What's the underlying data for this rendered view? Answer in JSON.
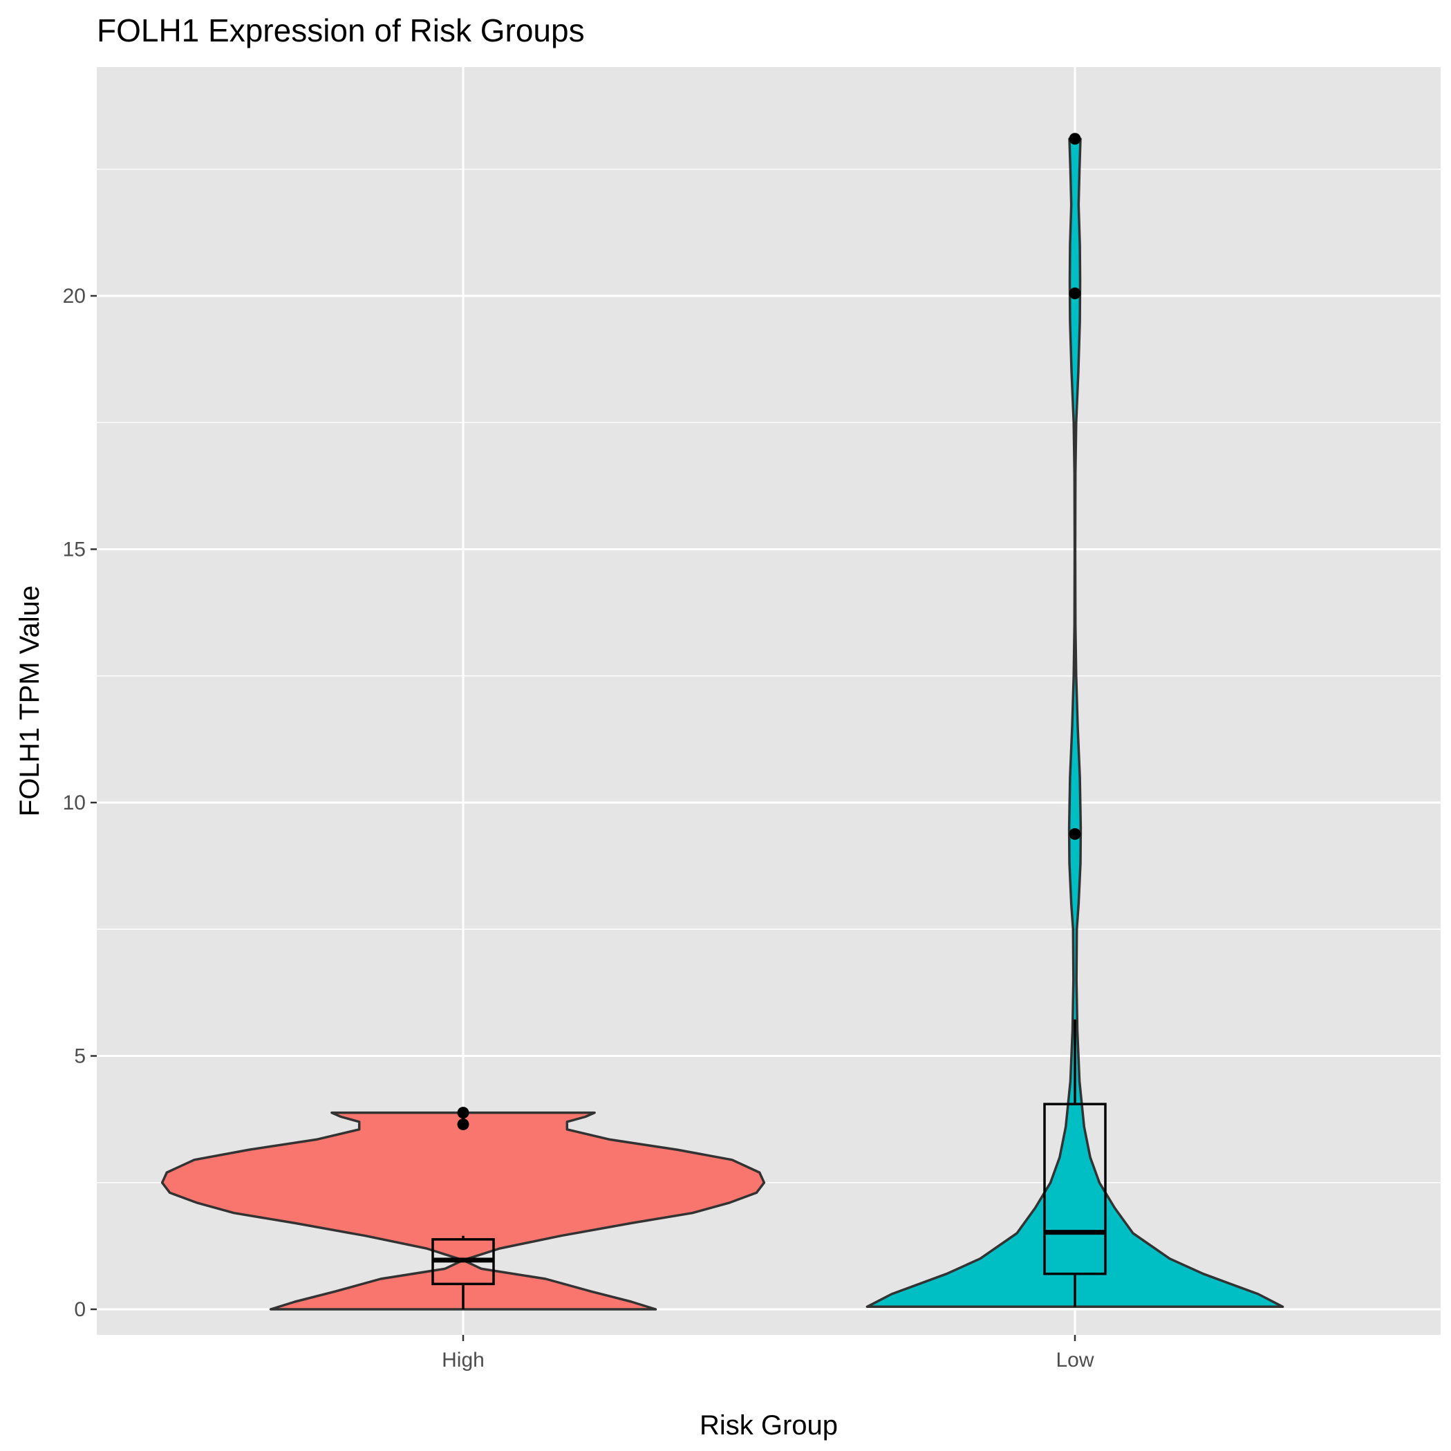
{
  "chart_data": {
    "type": "violin",
    "title": "FOLH1 Expression of Risk Groups",
    "xlabel": "Risk Group",
    "ylabel": "FOLH1 TPM Value",
    "ylim": [
      -1.2,
      24.5
    ],
    "yticks": [
      0,
      5,
      10,
      15,
      20
    ],
    "ytick_labels": [
      "0",
      "5",
      "10",
      "15",
      "20"
    ],
    "grid": true,
    "legend": "none",
    "categories": [
      "High",
      "Low"
    ],
    "groups": [
      {
        "name": "High",
        "color": "#F8766D",
        "min": 0,
        "max": 3.88,
        "box": {
          "lower_whisker": 0,
          "q1": 0.5,
          "median": 0.97,
          "q3": 1.38,
          "upper_whisker": 1.45
        },
        "outliers": [
          3.88,
          3.65
        ],
        "density": [
          [
            0,
            0.63
          ],
          [
            0.15,
            0.55
          ],
          [
            0.35,
            0.42
          ],
          [
            0.6,
            0.27
          ],
          [
            0.8,
            0.06
          ],
          [
            0.97,
            0.0
          ],
          [
            1.2,
            0.12
          ],
          [
            1.45,
            0.32
          ],
          [
            1.7,
            0.55
          ],
          [
            1.9,
            0.75
          ],
          [
            2.1,
            0.87
          ],
          [
            2.3,
            0.96
          ],
          [
            2.5,
            0.985
          ],
          [
            2.7,
            0.97
          ],
          [
            2.95,
            0.88
          ],
          [
            3.15,
            0.7
          ],
          [
            3.35,
            0.48
          ],
          [
            3.55,
            0.34
          ],
          [
            3.7,
            0.34
          ],
          [
            3.8,
            0.4
          ],
          [
            3.88,
            0.43
          ]
        ]
      },
      {
        "name": "Low",
        "color": "#00BFC4",
        "min": 0.05,
        "max": 23.1,
        "box": {
          "lower_whisker": 0.05,
          "q1": 0.7,
          "median": 1.52,
          "q3": 4.05,
          "upper_whisker": 5.72
        },
        "outliers": [
          23.1,
          20.05,
          9.38
        ],
        "density": [
          [
            0.05,
            0.68
          ],
          [
            0.3,
            0.6
          ],
          [
            0.7,
            0.42
          ],
          [
            1.0,
            0.31
          ],
          [
            1.5,
            0.19
          ],
          [
            2.0,
            0.13
          ],
          [
            2.5,
            0.08
          ],
          [
            3.0,
            0.05
          ],
          [
            3.6,
            0.03
          ],
          [
            4.5,
            0.015
          ],
          [
            5.5,
            0.008
          ],
          [
            6.5,
            0.005
          ],
          [
            7.5,
            0.006
          ],
          [
            8.0,
            0.012
          ],
          [
            8.8,
            0.018
          ],
          [
            9.5,
            0.019
          ],
          [
            10.5,
            0.016
          ],
          [
            11.5,
            0.009
          ],
          [
            12.5,
            0.004
          ],
          [
            13.5,
            0.0015
          ],
          [
            15,
            0.001
          ],
          [
            16.5,
            0.0015
          ],
          [
            17.5,
            0.004
          ],
          [
            18.5,
            0.011
          ],
          [
            19.5,
            0.016
          ],
          [
            20.3,
            0.017
          ],
          [
            21.0,
            0.016
          ],
          [
            21.8,
            0.012
          ],
          [
            22.5,
            0.015
          ],
          [
            23.1,
            0.018
          ]
        ]
      }
    ]
  }
}
